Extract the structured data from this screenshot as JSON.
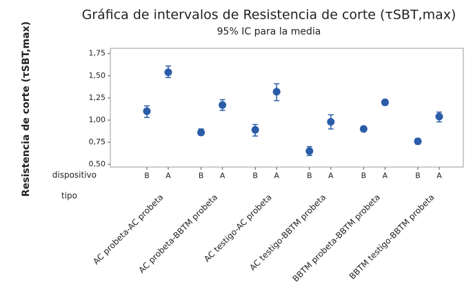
{
  "chart_data": {
    "type": "interval",
    "title": "Gráfica de intervalos de Resistencia de corte (τSBT,max)",
    "subtitle": "95% IC para la media",
    "y_label": "Resistencia de corte (τSBT,max)",
    "level_labels": [
      "dispositivo",
      "tipo"
    ],
    "categories": [
      "B",
      "A",
      "B",
      "A",
      "B",
      "A",
      "B",
      "A",
      "B",
      "A",
      "B",
      "A"
    ],
    "groups": [
      "AC probeta-AC probeta",
      "AC probeta-BBTM probeta",
      "AC testigo-AC probeta",
      "AC testigo-BBTM probeta",
      "BBTM probeta-BBTM probeta",
      "BBTM testigo-BBTM probeta"
    ],
    "color": "#2a5ca8",
    "values": [
      1.1,
      1.54,
      0.86,
      1.17,
      0.89,
      1.32,
      0.65,
      0.98,
      0.9,
      1.2,
      0.76,
      1.04
    ],
    "lower": [
      1.03,
      1.48,
      0.83,
      1.11,
      0.82,
      1.22,
      0.6,
      0.9,
      0.89,
      1.17,
      0.73,
      0.98
    ],
    "upper": [
      1.16,
      1.61,
      0.9,
      1.23,
      0.95,
      1.41,
      0.7,
      1.06,
      0.92,
      1.23,
      0.79,
      1.09
    ],
    "ylim": [
      0.47,
      1.81
    ],
    "yticks": [
      {
        "value": 0.5,
        "label": "0,50"
      },
      {
        "value": 0.75,
        "label": "0,75"
      },
      {
        "value": 1,
        "label": "1,00"
      },
      {
        "value": 1.25,
        "label": "1,25"
      },
      {
        "value": 1.5,
        "label": "1,50"
      },
      {
        "value": 1.75,
        "label": "1,75"
      }
    ]
  }
}
